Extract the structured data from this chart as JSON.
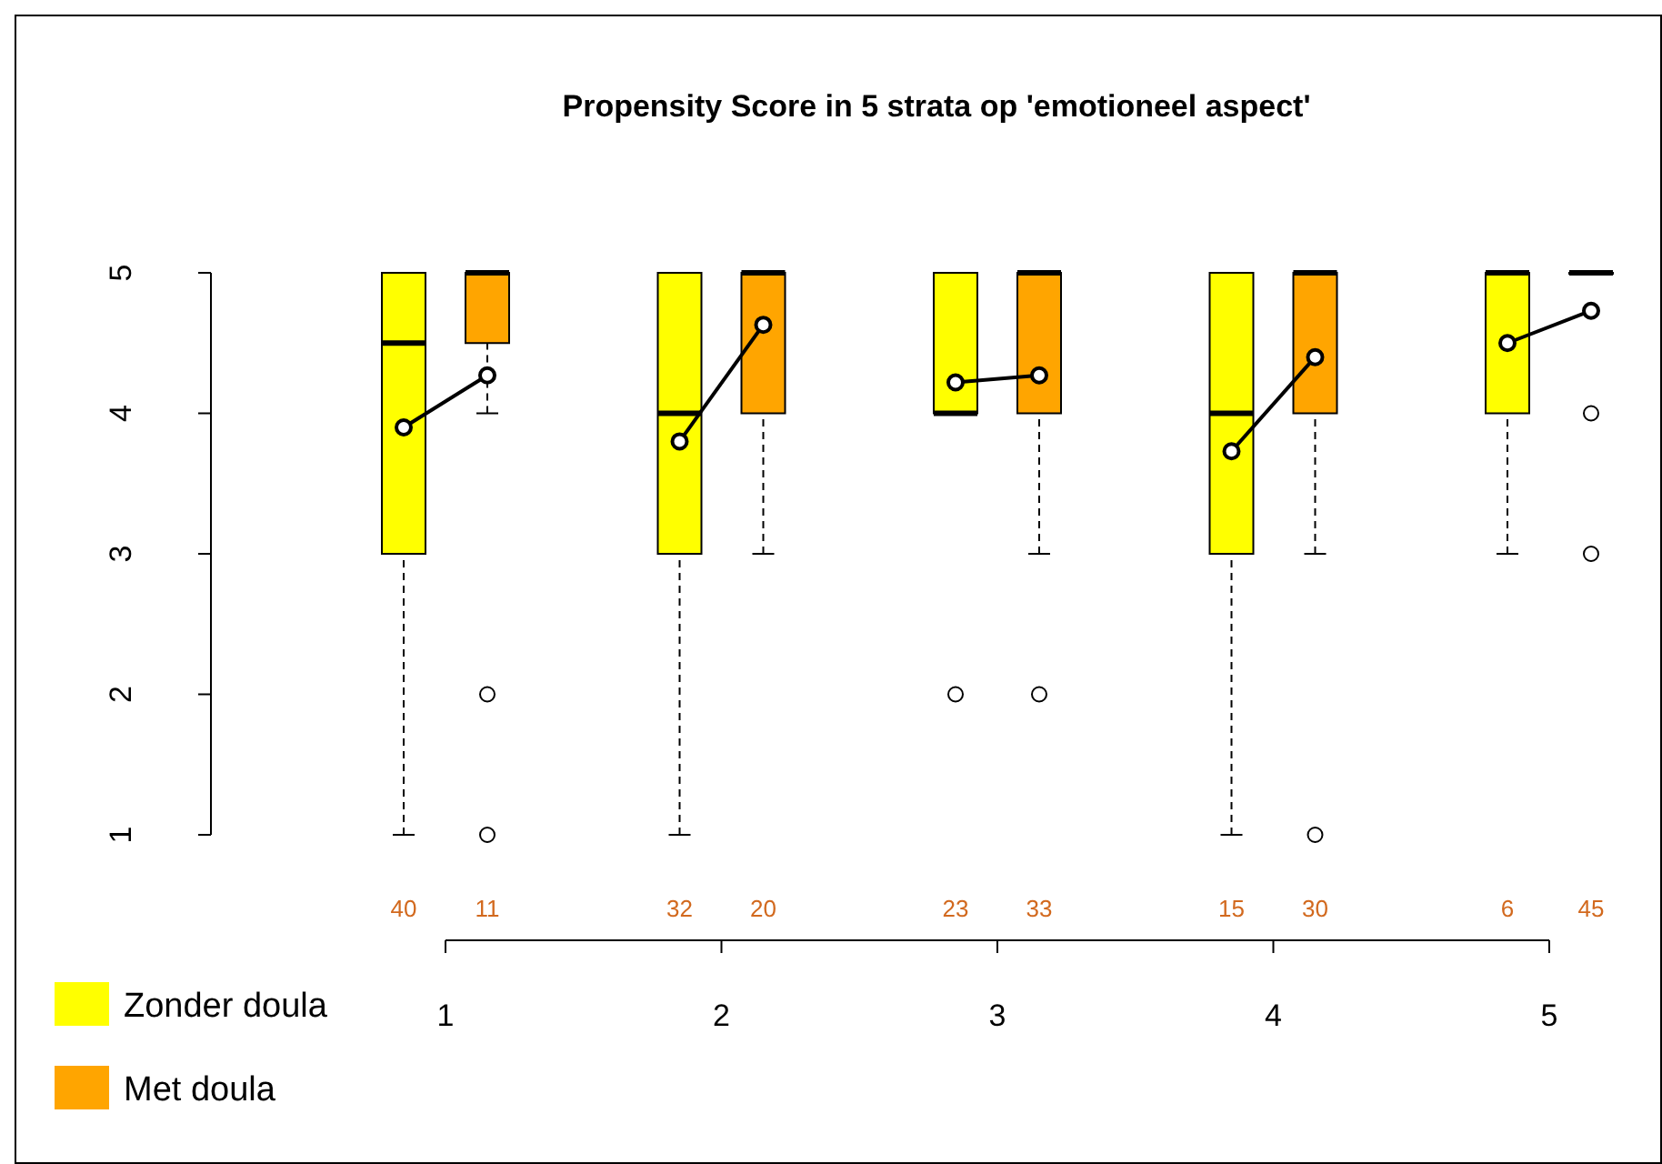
{
  "chart_data": {
    "type": "box",
    "title": "Propensity Score in 5 strata op 'emotioneel aspect'",
    "categories": [
      "1",
      "2",
      "3",
      "4",
      "5"
    ],
    "ylim": [
      1,
      5
    ],
    "yticks": [
      1,
      2,
      3,
      4,
      5
    ],
    "legend": "bottom left",
    "series": [
      {
        "name": "Zonder doula",
        "color": "#ffff00",
        "value_labels": [
          "40",
          "32",
          "23",
          "15",
          "6"
        ],
        "boxes": [
          {
            "low": 1,
            "q1": 3,
            "median": 4.5,
            "q3": 5,
            "high": 5,
            "mean": 3.9
          },
          {
            "low": 1,
            "q1": 3,
            "median": 4,
            "q3": 5,
            "high": 5,
            "mean": 3.8
          },
          {
            "low": 4,
            "q1": 4,
            "median": 4,
            "q3": 5,
            "high": 5,
            "mean": 4.22,
            "outliers": [
              2
            ]
          },
          {
            "low": 1,
            "q1": 3,
            "median": 4,
            "q3": 5,
            "high": 5,
            "mean": 3.73
          },
          {
            "low": 3,
            "q1": 4,
            "median": 5,
            "q3": 5,
            "high": 5,
            "mean": 4.5
          }
        ]
      },
      {
        "name": "Met doula",
        "color": "#ffa500",
        "value_labels": [
          "11",
          "20",
          "33",
          "30",
          "45"
        ],
        "boxes": [
          {
            "low": 4,
            "q1": 4.5,
            "median": 5,
            "q3": 5,
            "high": 5,
            "mean": 4.27,
            "outliers": [
              2,
              1
            ]
          },
          {
            "low": 3,
            "q1": 4,
            "median": 5,
            "q3": 5,
            "high": 5,
            "mean": 4.63
          },
          {
            "low": 3,
            "q1": 4,
            "median": 5,
            "q3": 5,
            "high": 5,
            "mean": 4.27,
            "outliers": [
              2
            ]
          },
          {
            "low": 3,
            "q1": 4,
            "median": 5,
            "q3": 5,
            "high": 5,
            "mean": 4.4,
            "outliers": [
              1
            ]
          },
          {
            "low": 5,
            "q1": 5,
            "median": 5,
            "q3": 5,
            "high": 5,
            "mean": 4.73,
            "outliers": [
              4,
              3
            ]
          }
        ]
      }
    ]
  }
}
